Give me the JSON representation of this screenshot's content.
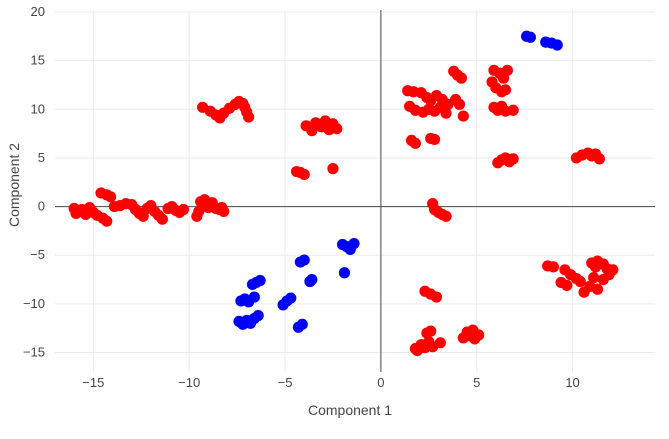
{
  "chart_data": {
    "type": "scatter",
    "title": "",
    "xlabel": "Component 1",
    "ylabel": "Component 2",
    "xlim": [
      -17,
      14.3
    ],
    "ylim": [
      -17,
      20.2
    ],
    "x_ticks": [
      -15,
      -10,
      -5,
      0,
      5,
      10
    ],
    "y_ticks": [
      -15,
      -10,
      -5,
      0,
      5,
      10,
      15,
      20
    ],
    "grid": true,
    "zero_lines": true,
    "legend": "none",
    "colors": {
      "red": "#ff0000",
      "blue": "#0000ff"
    },
    "series": [
      {
        "color": "#ff0000",
        "points": [
          [
            -14.6,
            1.4
          ],
          [
            -14.3,
            1.2
          ],
          [
            -14.1,
            1.0
          ],
          [
            -16.0,
            -0.2
          ],
          [
            -15.9,
            -0.7
          ],
          [
            -15.6,
            -0.3
          ],
          [
            -15.4,
            -0.8
          ],
          [
            -15.2,
            -0.1
          ],
          [
            -15.0,
            -0.6
          ],
          [
            -14.8,
            -0.9
          ],
          [
            -14.5,
            -1.2
          ],
          [
            -14.3,
            -1.5
          ],
          [
            -13.9,
            0.0
          ],
          [
            -13.6,
            0.1
          ],
          [
            -13.3,
            0.3
          ],
          [
            -13.0,
            0.2
          ],
          [
            -12.8,
            -0.3
          ],
          [
            -12.6,
            -0.7
          ],
          [
            -12.4,
            -1.0
          ],
          [
            -12.2,
            -0.2
          ],
          [
            -12.0,
            0.1
          ],
          [
            -11.8,
            -0.5
          ],
          [
            -11.6,
            -0.9
          ],
          [
            -11.4,
            -1.3
          ],
          [
            -11.1,
            -0.2
          ],
          [
            -10.9,
            0.0
          ],
          [
            -10.7,
            -0.4
          ],
          [
            -10.5,
            -0.6
          ],
          [
            -10.3,
            -0.3
          ],
          [
            -9.6,
            -1.0
          ],
          [
            -9.5,
            -0.5
          ],
          [
            -9.4,
            0.5
          ],
          [
            -9.2,
            0.7
          ],
          [
            -9.1,
            0.2
          ],
          [
            -9.0,
            -0.1
          ],
          [
            -8.8,
            0.4
          ],
          [
            -8.6,
            -0.2
          ],
          [
            -8.4,
            -0.3
          ],
          [
            -8.3,
            -0.1
          ],
          [
            -8.2,
            -0.5
          ],
          [
            -9.3,
            10.2
          ],
          [
            -8.9,
            9.8
          ],
          [
            -8.6,
            9.4
          ],
          [
            -8.4,
            9.1
          ],
          [
            -8.2,
            9.6
          ],
          [
            -7.9,
            10.1
          ],
          [
            -7.6,
            10.5
          ],
          [
            -7.4,
            10.8
          ],
          [
            -7.2,
            10.6
          ],
          [
            -7.1,
            10.2
          ],
          [
            -7.0,
            9.7
          ],
          [
            -6.9,
            9.2
          ],
          [
            -3.9,
            8.3
          ],
          [
            -3.6,
            7.8
          ],
          [
            -3.4,
            8.6
          ],
          [
            -3.1,
            8.2
          ],
          [
            -2.9,
            8.8
          ],
          [
            -2.7,
            7.9
          ],
          [
            -2.5,
            8.5
          ],
          [
            -2.4,
            8.1
          ],
          [
            -2.3,
            8.0
          ],
          [
            -4.4,
            3.6
          ],
          [
            -4.2,
            3.5
          ],
          [
            -4.0,
            3.3
          ],
          [
            -2.5,
            3.9
          ],
          [
            1.4,
            11.9
          ],
          [
            1.7,
            11.8
          ],
          [
            2.1,
            11.7
          ],
          [
            2.4,
            11.2
          ],
          [
            2.6,
            10.9
          ],
          [
            2.9,
            11.4
          ],
          [
            3.2,
            11.0
          ],
          [
            3.5,
            10.5
          ],
          [
            1.5,
            10.3
          ],
          [
            1.8,
            9.9
          ],
          [
            2.2,
            9.7
          ],
          [
            2.5,
            10.0
          ],
          [
            2.8,
            9.8
          ],
          [
            3.1,
            10.2
          ],
          [
            3.4,
            9.6
          ],
          [
            4.3,
            9.3
          ],
          [
            3.8,
            13.9
          ],
          [
            4.0,
            13.5
          ],
          [
            4.2,
            13.2
          ],
          [
            3.9,
            11.0
          ],
          [
            4.1,
            10.5
          ],
          [
            1.6,
            6.8
          ],
          [
            1.8,
            6.5
          ],
          [
            2.6,
            7.0
          ],
          [
            2.8,
            6.9
          ],
          [
            5.9,
            14.0
          ],
          [
            6.2,
            13.7
          ],
          [
            6.4,
            13.2
          ],
          [
            6.6,
            14.0
          ],
          [
            5.8,
            12.8
          ],
          [
            6.0,
            12.2
          ],
          [
            6.3,
            11.8
          ],
          [
            6.5,
            12.0
          ],
          [
            5.9,
            10.2
          ],
          [
            6.1,
            9.9
          ],
          [
            6.3,
            10.3
          ],
          [
            6.5,
            9.8
          ],
          [
            6.9,
            9.9
          ],
          [
            6.1,
            4.5
          ],
          [
            6.3,
            4.8
          ],
          [
            6.5,
            5.0
          ],
          [
            6.7,
            4.6
          ],
          [
            6.9,
            4.9
          ],
          [
            10.2,
            5.0
          ],
          [
            10.5,
            5.3
          ],
          [
            10.8,
            5.5
          ],
          [
            11.0,
            5.2
          ],
          [
            11.2,
            5.4
          ],
          [
            11.4,
            4.9
          ],
          [
            2.7,
            0.3
          ],
          [
            2.8,
            -0.3
          ],
          [
            3.0,
            -0.6
          ],
          [
            3.2,
            -0.8
          ],
          [
            3.4,
            -1.0
          ],
          [
            8.7,
            -6.1
          ],
          [
            9.0,
            -6.2
          ],
          [
            9.6,
            -6.5
          ],
          [
            9.4,
            -7.8
          ],
          [
            9.7,
            -8.1
          ],
          [
            9.9,
            -7.0
          ],
          [
            10.2,
            -7.4
          ],
          [
            10.4,
            -7.7
          ],
          [
            10.6,
            -8.8
          ],
          [
            10.9,
            -8.2
          ],
          [
            11.1,
            -7.3
          ],
          [
            11.3,
            -8.5
          ],
          [
            11.0,
            -5.8
          ],
          [
            11.3,
            -5.6
          ],
          [
            11.6,
            -5.9
          ],
          [
            11.8,
            -6.4
          ],
          [
            12.1,
            -6.5
          ],
          [
            11.9,
            -7.0
          ],
          [
            11.6,
            -7.5
          ],
          [
            11.2,
            -6.2
          ],
          [
            2.3,
            -8.7
          ],
          [
            2.6,
            -9.0
          ],
          [
            2.9,
            -9.3
          ],
          [
            1.9,
            -14.8
          ],
          [
            2.1,
            -14.2
          ],
          [
            2.3,
            -14.5
          ],
          [
            2.5,
            -13.9
          ],
          [
            2.7,
            -14.4
          ],
          [
            2.4,
            -13.0
          ],
          [
            2.6,
            -12.8
          ],
          [
            3.1,
            -14.0
          ],
          [
            1.8,
            -14.6
          ],
          [
            4.3,
            -13.5
          ],
          [
            4.5,
            -12.9
          ],
          [
            4.7,
            -13.3
          ],
          [
            4.9,
            -13.6
          ],
          [
            5.1,
            -13.2
          ],
          [
            4.8,
            -12.7
          ]
        ]
      },
      {
        "color": "#0000ff",
        "points": [
          [
            7.6,
            17.5
          ],
          [
            7.8,
            17.4
          ],
          [
            8.6,
            16.9
          ],
          [
            8.9,
            16.8
          ],
          [
            9.2,
            16.6
          ],
          [
            -7.4,
            -11.8
          ],
          [
            -7.2,
            -12.1
          ],
          [
            -7.0,
            -11.7
          ],
          [
            -6.8,
            -12.0
          ],
          [
            -6.6,
            -11.5
          ],
          [
            -6.4,
            -11.2
          ],
          [
            -7.3,
            -9.7
          ],
          [
            -7.1,
            -9.5
          ],
          [
            -6.9,
            -9.8
          ],
          [
            -6.6,
            -9.3
          ],
          [
            -6.7,
            -8.0
          ],
          [
            -6.5,
            -7.8
          ],
          [
            -6.3,
            -7.6
          ],
          [
            -5.1,
            -10.1
          ],
          [
            -4.9,
            -9.7
          ],
          [
            -4.7,
            -9.4
          ],
          [
            -4.3,
            -12.4
          ],
          [
            -4.1,
            -12.1
          ],
          [
            -4.2,
            -5.7
          ],
          [
            -4.0,
            -5.5
          ],
          [
            -3.7,
            -7.7
          ],
          [
            -3.6,
            -7.5
          ],
          [
            -2.0,
            -3.9
          ],
          [
            -1.8,
            -4.1
          ],
          [
            -1.6,
            -4.4
          ],
          [
            -1.4,
            -3.8
          ],
          [
            -1.9,
            -6.8
          ]
        ]
      }
    ]
  }
}
